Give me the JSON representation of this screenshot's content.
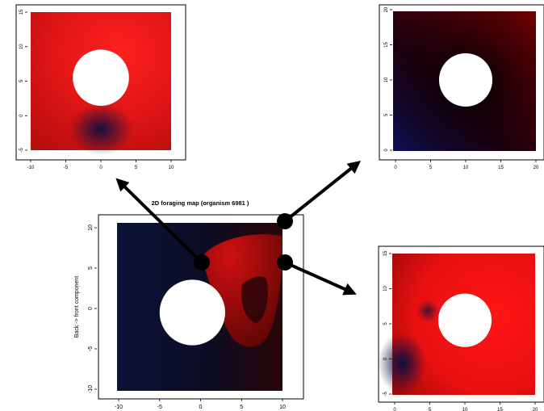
{
  "chart_data": [
    {
      "type": "heatmap",
      "title": "",
      "xlabel": "",
      "ylabel": "",
      "xlim": [
        -10,
        10
      ],
      "ylim": [
        -5,
        15
      ],
      "xticks": [
        -10,
        -5,
        0,
        5,
        10
      ],
      "yticks": [
        -5,
        0,
        5,
        10,
        15
      ],
      "obstacle": {
        "cx": 0,
        "cy": 5.5,
        "r": 4
      },
      "colors": {
        "high": "#ff1a1a",
        "low": "#0a1040"
      }
    },
    {
      "type": "heatmap",
      "title": "",
      "xlabel": "",
      "ylabel": "",
      "xlim": [
        0,
        20
      ],
      "ylim": [
        0,
        20
      ],
      "xticks": [
        0,
        5,
        10,
        15,
        20
      ],
      "yticks": [
        0,
        5,
        10,
        15,
        20
      ],
      "obstacle": {
        "cx": 10,
        "cy": 10,
        "r": 3.8
      },
      "colors": {
        "high": "#8a0000",
        "low": "#0a1055"
      }
    },
    {
      "type": "heatmap",
      "title": "2D foraging map (organism 6981 )",
      "xlabel": "",
      "ylabel": "Back -> front component",
      "xlim": [
        -10,
        10
      ],
      "ylim": [
        -10,
        10
      ],
      "xticks": [
        -10,
        -5,
        0,
        5,
        10
      ],
      "yticks": [
        -10,
        -5,
        0,
        5,
        10
      ],
      "obstacle": {
        "cx": -1,
        "cy": -0.5,
        "r": 4
      },
      "colors": {
        "high": "#c80a0a",
        "low": "#0c1238"
      }
    },
    {
      "type": "heatmap",
      "title": "",
      "xlabel": "",
      "ylabel": "",
      "xlim": [
        0,
        20
      ],
      "ylim": [
        -5,
        15
      ],
      "xticks": [
        0,
        5,
        10,
        15,
        20
      ],
      "yticks": [
        -5,
        0,
        5,
        10,
        15
      ],
      "obstacle": {
        "cx": 10,
        "cy": 5.5,
        "r": 3.8
      },
      "colors": {
        "high": "#ff1010",
        "low": "#081040"
      }
    }
  ]
}
